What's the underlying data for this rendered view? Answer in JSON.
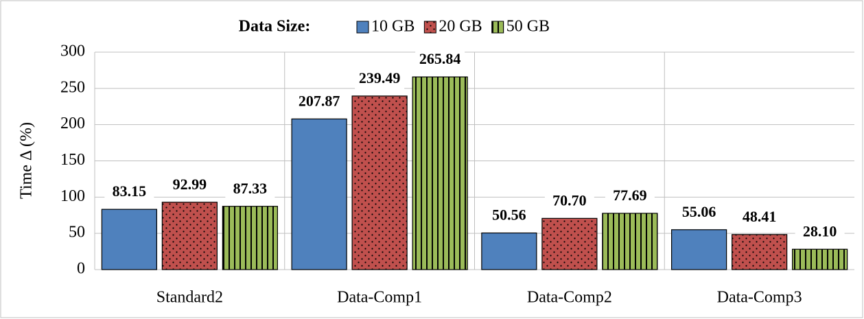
{
  "chart_data": {
    "type": "bar",
    "legend_title": "Data Size:",
    "ylabel": "Time Δ (%)",
    "categories": [
      "Standard2",
      "Data-Comp1",
      "Data-Comp2",
      "Data-Comp3"
    ],
    "series": [
      {
        "name": "10 GB",
        "color": "#4f81bd",
        "pattern": "solid",
        "values": [
          83.15,
          207.87,
          50.56,
          55.06
        ],
        "value_labels": [
          "83.15",
          "207.87",
          "50.56",
          "55.06"
        ]
      },
      {
        "name": "20 GB",
        "color": "#c0504d",
        "pattern": "dots",
        "values": [
          92.99,
          239.49,
          70.7,
          48.41
        ],
        "value_labels": [
          "92.99",
          "239.49",
          "70.70",
          "48.41"
        ]
      },
      {
        "name": "50 GB",
        "color": "#9bbb59",
        "pattern": "stripes",
        "values": [
          87.33,
          265.84,
          77.69,
          28.1
        ],
        "value_labels": [
          "87.33",
          "265.84",
          "77.69",
          "28.10"
        ]
      }
    ],
    "ylim": [
      0,
      300
    ],
    "yticks": [
      0,
      50,
      100,
      150,
      200,
      250,
      300
    ],
    "grid": true,
    "legend": "top"
  }
}
